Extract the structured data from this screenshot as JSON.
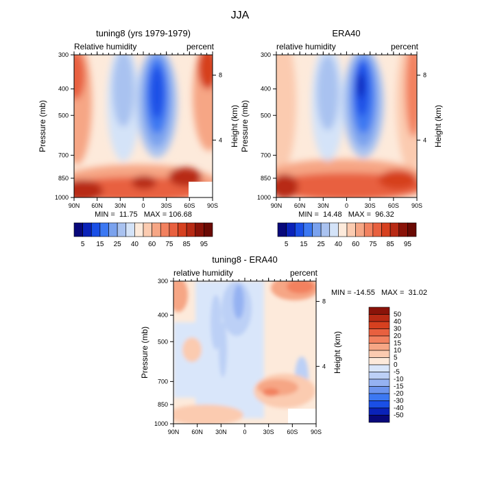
{
  "figure": {
    "title": "JJA"
  },
  "colors": {
    "rh_levels": [
      "#08087a",
      "#0a22b8",
      "#1a4fe6",
      "#3c78f2",
      "#7aa2ee",
      "#a9c2f0",
      "#d4e3f8",
      "#fdeadb",
      "#fbcbb0",
      "#f6a685",
      "#f2815f",
      "#e8603f",
      "#d6401f",
      "#b82a14",
      "#8a1309",
      "#6a0a04"
    ],
    "diff_levels": [
      "#08087a",
      "#0a22b8",
      "#1a4fe6",
      "#3c78f2",
      "#6c94ee",
      "#95b2f2",
      "#bcd0f6",
      "#d9e6fa",
      "#fdeadb",
      "#fbcbb0",
      "#f6a685",
      "#f2815f",
      "#e8603f",
      "#d6401f",
      "#b82a14",
      "#8a1309"
    ]
  },
  "chart_data": [
    {
      "type": "heatmap",
      "title": "tuning8 (yrs 1979-1979)",
      "subtitle_left": "Relative humidity",
      "subtitle_right": "percent",
      "xlabel": "",
      "ylabel": "Pressure (mb)",
      "ylabel_right": "Height (km)",
      "x_ticks": [
        "90N",
        "60N",
        "30N",
        "0",
        "30S",
        "60S",
        "90S"
      ],
      "y_ticks": [
        "300",
        "400",
        "500",
        "700",
        "850",
        "1000"
      ],
      "y_ticks_right": [
        "8",
        "4"
      ],
      "stats": "MIN =  11.75   MAX = 106.68",
      "colorbar_labels": [
        "5",
        "15",
        "25",
        "40",
        "60",
        "75",
        "85",
        "95"
      ]
    },
    {
      "type": "heatmap",
      "title": "ERA40",
      "subtitle_left": "relative humidity",
      "subtitle_right": "percent",
      "xlabel": "",
      "ylabel": "Pressure (mb)",
      "ylabel_right": "Height (km)",
      "x_ticks": [
        "90N",
        "60N",
        "30N",
        "0",
        "30S",
        "60S",
        "90S"
      ],
      "y_ticks": [
        "300",
        "400",
        "500",
        "700",
        "850",
        "1000"
      ],
      "y_ticks_right": [
        "8",
        "4"
      ],
      "stats": "MIN =  14.48   MAX =  96.32",
      "colorbar_labels": [
        "5",
        "15",
        "25",
        "40",
        "60",
        "75",
        "85",
        "95"
      ]
    },
    {
      "type": "heatmap",
      "title": "tuning8 - ERA40",
      "subtitle_left": "relative humidity",
      "subtitle_right": "percent",
      "xlabel": "",
      "ylabel": "Pressure (mb)",
      "ylabel_right": "Height (km)",
      "x_ticks": [
        "90N",
        "60N",
        "30N",
        "0",
        "30S",
        "60S",
        "90S"
      ],
      "y_ticks": [
        "300",
        "400",
        "500",
        "700",
        "850",
        "1000"
      ],
      "y_ticks_right": [
        "8",
        "4"
      ],
      "stats": "MIN = -14.55   MAX =  31.02",
      "colorbar_labels": [
        "50",
        "40",
        "30",
        "20",
        "15",
        "10",
        "5",
        "0",
        "-5",
        "-10",
        "-15",
        "-20",
        "-30",
        "-40",
        "-50"
      ]
    }
  ]
}
